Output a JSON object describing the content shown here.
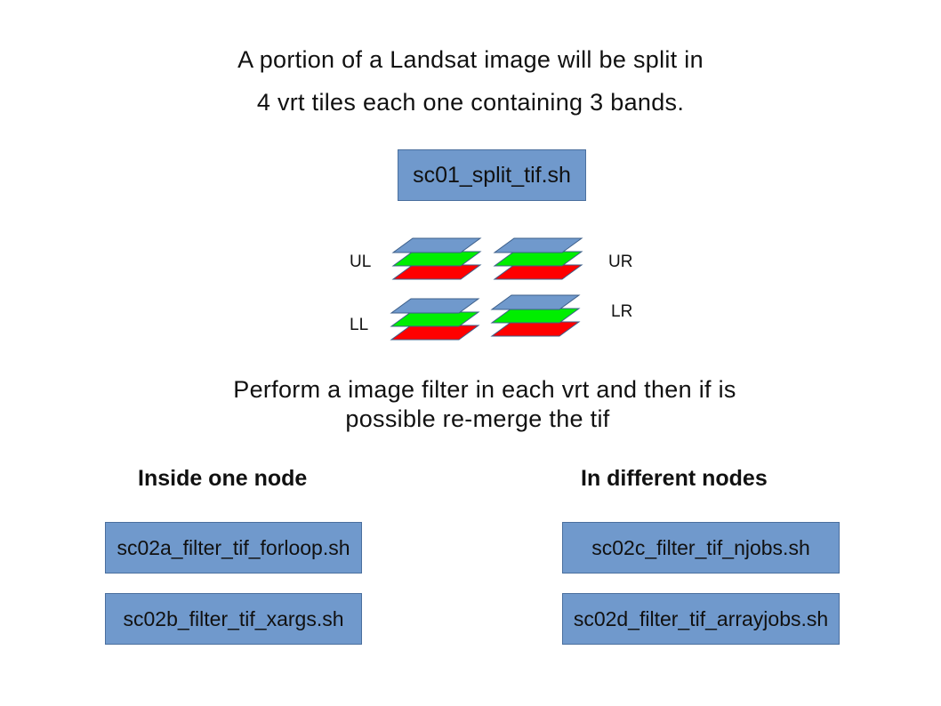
{
  "intro": {
    "line1": "A portion of a Landsat image will be split in",
    "line2": "4 vrt tiles each one containing 3 bands."
  },
  "split_script": "sc01_split_tif.sh",
  "tiles": {
    "labels": {
      "ul": "UL",
      "ur": "UR",
      "ll": "LL",
      "lr": "LR"
    },
    "band_colors": [
      "#ff0000",
      "#00ee00",
      "#7099cc"
    ]
  },
  "filter_text": {
    "line1": "Perform a image filter in each vrt and then if is",
    "line2": "possible re-merge the tif"
  },
  "inside_node": {
    "heading": "Inside one node",
    "scripts": [
      "sc02a_filter_tif_forloop.sh",
      "sc02b_filter_tif_xargs.sh"
    ]
  },
  "different_nodes": {
    "heading": "In different nodes",
    "scripts": [
      "sc02c_filter_tif_njobs.sh",
      "sc02d_filter_tif_arrayjobs.sh"
    ]
  }
}
